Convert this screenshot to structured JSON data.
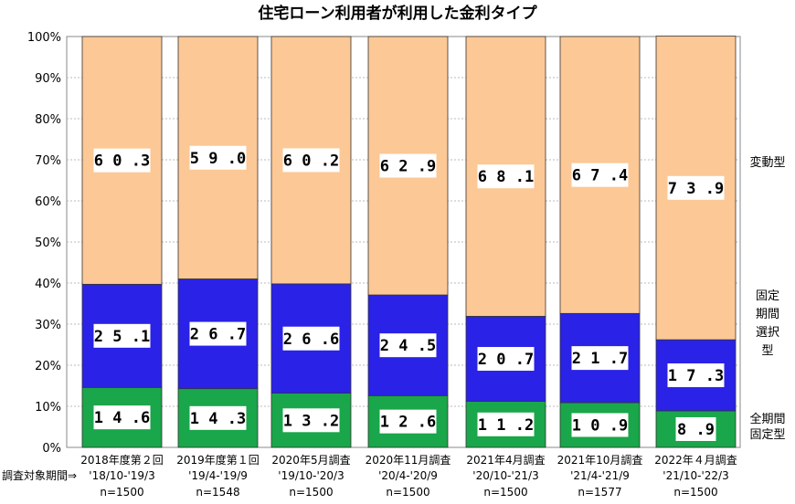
{
  "chart_data": {
    "type": "bar",
    "stacked": true,
    "title": "住宅ローン利用者が利用した金利タイプ",
    "yticks": [
      "0%",
      "10%",
      "20%",
      "30%",
      "40%",
      "50%",
      "60%",
      "70%",
      "80%",
      "90%",
      "100%"
    ],
    "ylim": [
      0,
      100
    ],
    "period_label": "調査対象期間⇒",
    "categories": [
      {
        "name": "2018年度第２回",
        "period": "'18/10-'19/3",
        "n": "n=1500"
      },
      {
        "name": "2019年度第１回",
        "period": "'19/4-'19/9",
        "n": "n=1548"
      },
      {
        "name": "2020年5月調査",
        "period": "'19/10-'20/3",
        "n": "n=1500"
      },
      {
        "name": "2020年11月調査",
        "period": "'20/4-'20/9",
        "n": "n=1500"
      },
      {
        "name": "2021年4月調査",
        "period": "'20/10-'21/3",
        "n": "n=1500"
      },
      {
        "name": "2021年10月調査",
        "period": "'21/4-'21/9",
        "n": "n=1577"
      },
      {
        "name": "2022年４月調査",
        "period": "'21/10-'22/3",
        "n": "n=1500"
      }
    ],
    "series": [
      {
        "name": "全期間固定型",
        "legend_lines": [
          "全期間",
          "固定型"
        ],
        "color": "#1aa64a",
        "values": [
          14.6,
          14.3,
          13.2,
          12.6,
          11.2,
          10.9,
          8.9
        ]
      },
      {
        "name": "固定期間選択型",
        "legend_lines": [
          "固定",
          "期間",
          "選択",
          "型"
        ],
        "color": "#2a22e6",
        "values": [
          25.1,
          26.7,
          26.6,
          24.5,
          20.7,
          21.7,
          17.3
        ]
      },
      {
        "name": "変動型",
        "legend_lines": [
          "変動型"
        ],
        "color": "#fcc896",
        "values": [
          60.3,
          59.0,
          60.2,
          62.9,
          68.1,
          67.4,
          73.9
        ]
      }
    ]
  }
}
